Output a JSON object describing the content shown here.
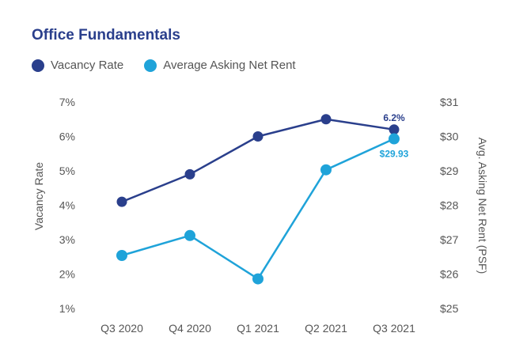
{
  "chart_data": {
    "type": "line",
    "title": "Office Fundamentals",
    "categories": [
      "Q3 2020",
      "Q4 2020",
      "Q1 2021",
      "Q2 2021",
      "Q3 2021"
    ],
    "series": [
      {
        "name": "Vacancy Rate",
        "axis": "left",
        "color": "#2a3f8c",
        "values": [
          4.1,
          4.9,
          6.0,
          6.5,
          6.2
        ]
      },
      {
        "name": "Average Asking Net Rent",
        "axis": "right",
        "color": "#1fa3d9",
        "values": [
          26.54,
          27.12,
          25.86,
          29.03,
          29.93
        ]
      }
    ],
    "y_left": {
      "label": "Vacancy Rate",
      "range": [
        1,
        7
      ],
      "ticks": [
        "1%",
        "2%",
        "3%",
        "4%",
        "5%",
        "6%",
        "7%"
      ]
    },
    "y_right": {
      "label": "Avg. Asking Net Rent (PSF)",
      "range": [
        25,
        31
      ],
      "ticks": [
        "$25",
        "$26",
        "$27",
        "$28",
        "$29",
        "$30",
        "$31"
      ]
    },
    "annotations": [
      {
        "series": 0,
        "index": 4,
        "text": "6.2%"
      },
      {
        "series": 1,
        "index": 4,
        "text": "$29.93"
      }
    ],
    "grid": false,
    "legend_position": "top-left"
  }
}
